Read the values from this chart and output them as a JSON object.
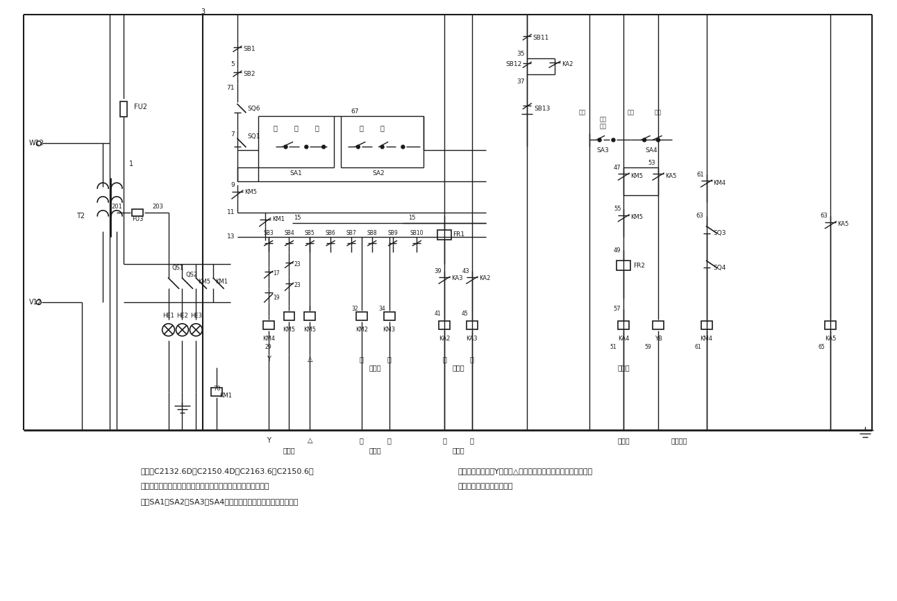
{
  "bg_color": "#ffffff",
  "line_color": "#1a1a1a",
  "fig_width": 12.92,
  "fig_height": 8.65,
  "caption_line1": "所示为C2132.6D、C2150.4D、C2163.6、C2150.6型",
  "caption_line2": "卧式六角自动车床电气原理图的控制回路部分。电路中采用转换",
  "caption_line3": "开关SA1、SA2、SA3、SA4作为动作和程序的选择和控制，控制",
  "caption_right1": "回路控制主电机的Y联接和△联接，分配轴和运层器的正反转、冷",
  "caption_right2": "却泵的起停以及无料预停。",
  "label_Y": "Y",
  "label_delta": "△",
  "label_zheng1": "正",
  "label_fan1": "反",
  "label_zheng2": "正",
  "label_fan2": "反",
  "label_zhuji": "主电机",
  "label_fenpei": "分配轴",
  "label_yunshen": "运层器",
  "label_lengque": "冷却泵",
  "label_wuliao": "无料预停"
}
